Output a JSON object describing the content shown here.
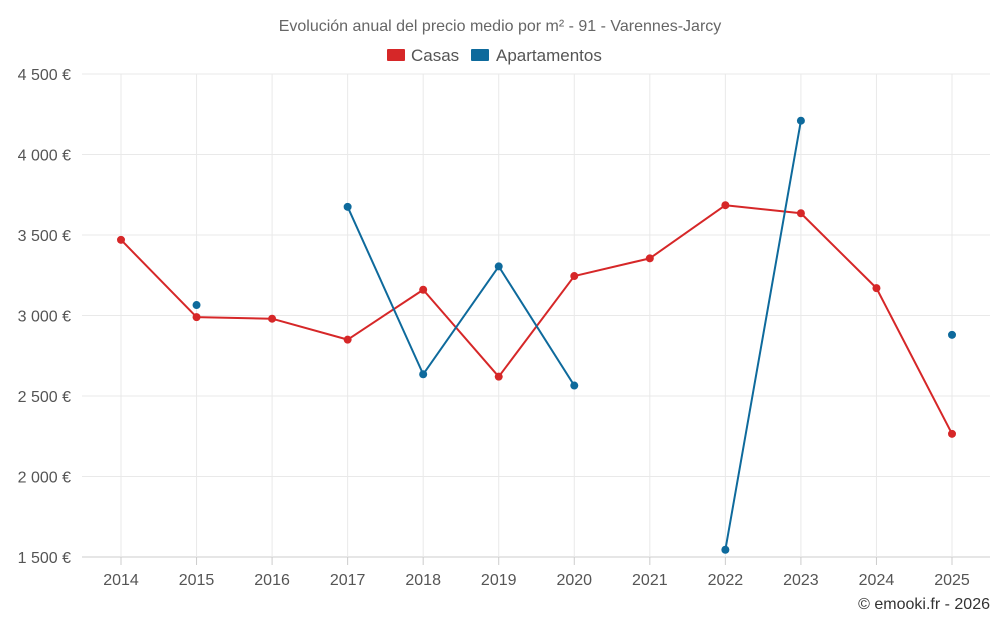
{
  "chart_data": {
    "type": "line",
    "title": "Evolución anual del precio medio por m² - 91 - Varennes-Jarcy",
    "xlabel": "",
    "ylabel": "",
    "categories": [
      "2014",
      "2015",
      "2016",
      "2017",
      "2018",
      "2019",
      "2020",
      "2021",
      "2022",
      "2023",
      "2024",
      "2025"
    ],
    "ylim": [
      1500,
      4500
    ],
    "yticks": [
      1500,
      2000,
      2500,
      3000,
      3500,
      4000,
      4500
    ],
    "ytick_labels": [
      "1 500 €",
      "2 000 €",
      "2 500 €",
      "3 000 €",
      "3 500 €",
      "4 000 €",
      "4 500 €"
    ],
    "grid": true,
    "legend_position": "top-center",
    "series": [
      {
        "name": "Casas",
        "color": "#d62728",
        "values": [
          3470,
          2990,
          2980,
          2850,
          3160,
          2620,
          3245,
          3355,
          3685,
          3635,
          3170,
          2265
        ]
      },
      {
        "name": "Apartamentos",
        "color": "#0e6a9c",
        "values": [
          null,
          3065,
          null,
          3675,
          2635,
          3305,
          2565,
          null,
          1545,
          4210,
          null,
          2880
        ]
      }
    ]
  },
  "credit": "© emooki.fr - 2026"
}
